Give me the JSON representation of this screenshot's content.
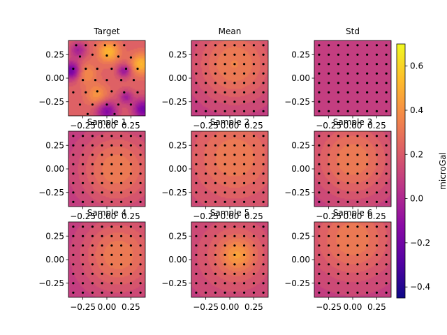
{
  "figure": {
    "colorbar_label": "microGal",
    "colormap": "plasma",
    "colorbar_ticks": [
      "0.6",
      "0.4",
      "0.2",
      "0.0",
      "−0.2",
      "−0.4"
    ],
    "colorbar_tick_values": [
      0.6,
      0.4,
      0.2,
      0.0,
      -0.2,
      -0.4
    ],
    "colorbar_range": [
      -0.45,
      0.7
    ]
  },
  "chart_data": [
    {
      "type": "heatmap",
      "title": "Target",
      "field": "target",
      "xlim": [
        -0.4,
        0.4
      ],
      "ylim": [
        -0.4,
        0.4
      ],
      "xticks": [
        "−0.25",
        "0.00",
        "0.25"
      ],
      "yticks": [
        "0.25",
        "0.00",
        "−0.25"
      ],
      "x_tick_values": [
        -0.25,
        0,
        0.25
      ],
      "y_tick_values": [
        0.25,
        0,
        -0.25
      ],
      "show_xticks": true,
      "value_range": [
        -0.4,
        0.6
      ],
      "points": [
        [
          -0.32,
          0.35
        ],
        [
          -0.22,
          0.35
        ],
        [
          -0.12,
          0.35
        ],
        [
          -0.02,
          0.35
        ],
        [
          0.08,
          0.35
        ],
        [
          0.18,
          0.35
        ],
        [
          -0.28,
          0.23
        ],
        [
          -0.15,
          0.25
        ],
        [
          0.0,
          0.24
        ],
        [
          0.12,
          0.23
        ],
        [
          0.25,
          0.22
        ],
        [
          -0.35,
          0.1
        ],
        [
          -0.22,
          0.1
        ],
        [
          -0.1,
          0.1
        ],
        [
          0.05,
          0.1
        ],
        [
          0.2,
          0.1
        ],
        [
          0.32,
          0.1
        ],
        [
          -0.25,
          -0.02
        ],
        [
          -0.12,
          -0.02
        ],
        [
          0.0,
          -0.02
        ],
        [
          0.15,
          -0.02
        ],
        [
          0.28,
          -0.02
        ],
        [
          -0.35,
          -0.15
        ],
        [
          -0.22,
          -0.15
        ],
        [
          -0.1,
          -0.14
        ],
        [
          0.05,
          -0.14
        ],
        [
          0.18,
          -0.15
        ],
        [
          0.32,
          -0.15
        ],
        [
          -0.28,
          -0.28
        ],
        [
          -0.15,
          -0.28
        ],
        [
          0.0,
          -0.28
        ],
        [
          0.12,
          -0.28
        ],
        [
          0.25,
          -0.28
        ],
        [
          -0.2,
          -0.38
        ],
        [
          0.08,
          -0.38
        ]
      ]
    },
    {
      "type": "heatmap",
      "title": "Mean",
      "field": "mean",
      "xlim": [
        -0.4,
        0.4
      ],
      "ylim": [
        -0.4,
        0.4
      ],
      "xticks": [
        "−0.25",
        "0.00",
        "0.25"
      ],
      "yticks": [
        "0.25",
        "0.00",
        "−0.25"
      ],
      "x_tick_values": [
        -0.25,
        0,
        0.25
      ],
      "y_tick_values": [
        0.25,
        0,
        -0.25
      ],
      "show_xticks": true,
      "value_range": [
        0.05,
        0.35
      ],
      "points": "grid"
    },
    {
      "type": "heatmap",
      "title": "Std",
      "field": "std",
      "xlim": [
        -0.4,
        0.4
      ],
      "ylim": [
        -0.4,
        0.4
      ],
      "xticks": [
        "−0.25",
        "0.00",
        "0.25"
      ],
      "yticks": [
        "0.25",
        "0.00",
        "−0.25"
      ],
      "x_tick_values": [
        -0.25,
        0,
        0.25
      ],
      "y_tick_values": [
        0.25,
        0,
        -0.25
      ],
      "show_xticks": true,
      "value_range": [
        0.05,
        0.1
      ],
      "points": "grid"
    },
    {
      "type": "heatmap",
      "title": "Sample 1",
      "field": "s1",
      "xlim": [
        -0.4,
        0.4
      ],
      "ylim": [
        -0.4,
        0.4
      ],
      "xticks": [
        "−0.25",
        "0.00",
        "0.25"
      ],
      "yticks": [
        "0.25",
        "0.00",
        "−0.25"
      ],
      "x_tick_values": [
        -0.25,
        0,
        0.25
      ],
      "y_tick_values": [
        0.25,
        0,
        -0.25
      ],
      "show_xticks": true,
      "value_range": [
        0.05,
        0.35
      ],
      "points": "grid"
    },
    {
      "type": "heatmap",
      "title": "Sample 2",
      "field": "s2",
      "xlim": [
        -0.4,
        0.4
      ],
      "ylim": [
        -0.4,
        0.4
      ],
      "xticks": [
        "−0.25",
        "0.00",
        "0.25"
      ],
      "yticks": [
        "0.25",
        "0.00",
        "−0.25"
      ],
      "x_tick_values": [
        -0.25,
        0,
        0.25
      ],
      "y_tick_values": [
        0.25,
        0,
        -0.25
      ],
      "show_xticks": true,
      "value_range": [
        0.1,
        0.33
      ],
      "points": "grid"
    },
    {
      "type": "heatmap",
      "title": "Sample 3",
      "field": "s3",
      "xlim": [
        -0.4,
        0.4
      ],
      "ylim": [
        -0.4,
        0.4
      ],
      "xticks": [
        "−0.25",
        "0.00",
        "0.25"
      ],
      "yticks": [
        "0.25",
        "0.00",
        "−0.25"
      ],
      "x_tick_values": [
        -0.25,
        0,
        0.25
      ],
      "y_tick_values": [
        0.25,
        0,
        -0.25
      ],
      "show_xticks": true,
      "value_range": [
        0.05,
        0.33
      ],
      "points": "grid"
    },
    {
      "type": "heatmap",
      "title": "Sample 4",
      "field": "s4",
      "xlim": [
        -0.4,
        0.4
      ],
      "ylim": [
        -0.4,
        0.4
      ],
      "xticks": [
        "−0.25",
        "0.00",
        "0.25"
      ],
      "yticks": [
        "0.25",
        "0.00",
        "−0.25"
      ],
      "x_tick_values": [
        -0.25,
        0,
        0.25
      ],
      "y_tick_values": [
        0.25,
        0,
        -0.25
      ],
      "show_xticks": true,
      "value_range": [
        0.05,
        0.33
      ],
      "points": "grid"
    },
    {
      "type": "heatmap",
      "title": "Sample 5",
      "field": "s5",
      "xlim": [
        -0.4,
        0.4
      ],
      "ylim": [
        -0.4,
        0.4
      ],
      "xticks": [
        "−0.25",
        "0.00",
        "0.25"
      ],
      "yticks": [
        "0.25",
        "0.00",
        "−0.25"
      ],
      "x_tick_values": [
        -0.25,
        0,
        0.25
      ],
      "y_tick_values": [
        0.25,
        0,
        -0.25
      ],
      "show_xticks": true,
      "value_range": [
        0.08,
        0.43
      ],
      "points": "grid"
    },
    {
      "type": "heatmap",
      "title": "Sample 6",
      "field": "s6",
      "xlim": [
        -0.4,
        0.4
      ],
      "ylim": [
        -0.4,
        0.4
      ],
      "xticks": [
        "−0.25",
        "0.00",
        "0.25"
      ],
      "yticks": [
        "0.25",
        "0.00",
        "−0.25"
      ],
      "x_tick_values": [
        -0.25,
        0,
        0.25
      ],
      "y_tick_values": [
        0.25,
        0,
        -0.25
      ],
      "show_xticks": true,
      "value_range": [
        0.08,
        0.33
      ],
      "points": "grid"
    }
  ]
}
